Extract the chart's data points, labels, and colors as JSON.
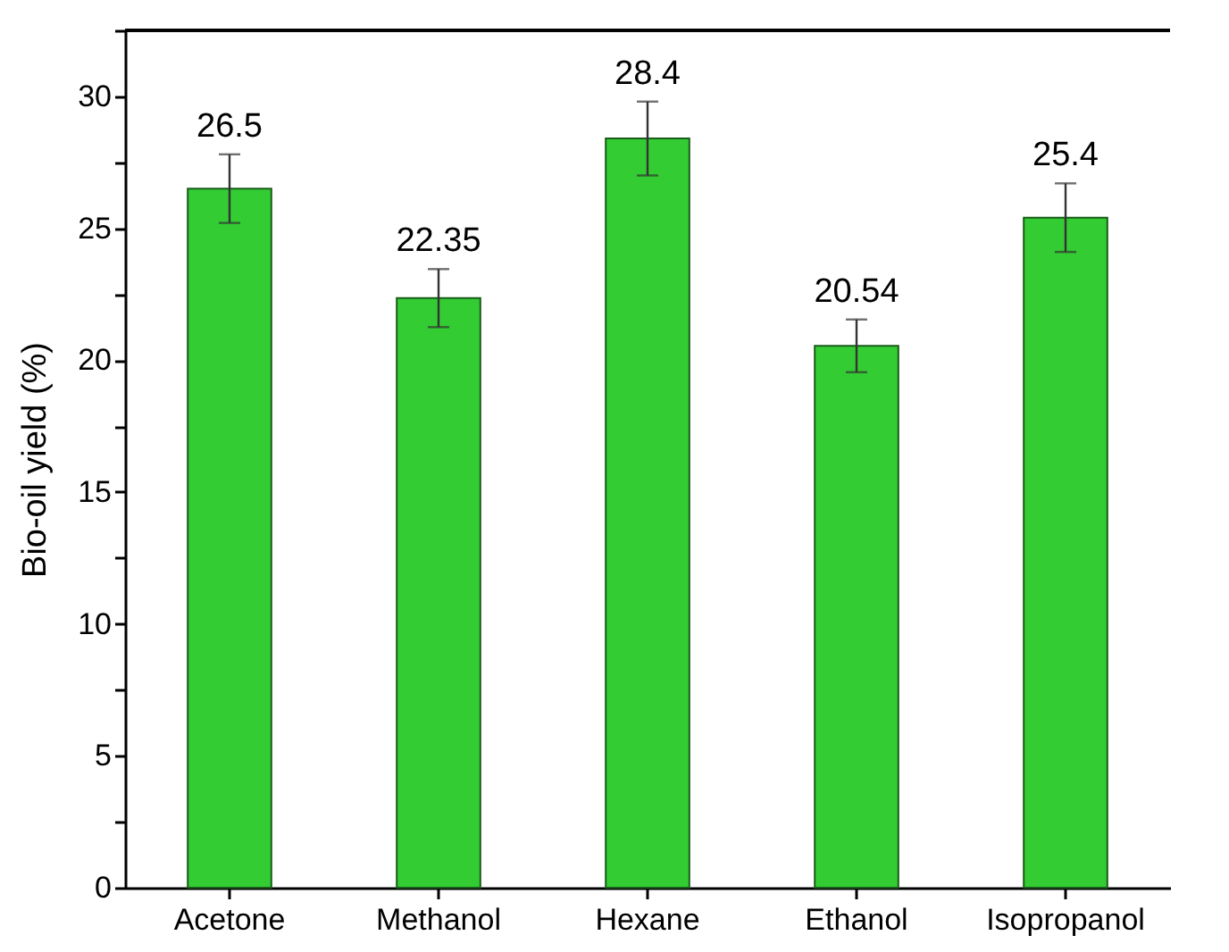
{
  "chart_data": {
    "type": "bar",
    "ylabel": "Bio-oil yield (%)",
    "categories": [
      "Acetone",
      "Methanol",
      "Hexane",
      "Ethanol",
      "Isopropanol"
    ],
    "values": [
      26.5,
      22.35,
      28.4,
      20.54,
      25.4
    ],
    "errors": [
      1.3,
      1.1,
      1.4,
      1.0,
      1.3
    ],
    "value_labels": [
      "26.5",
      "22.35",
      "28.4",
      "20.54",
      "25.4"
    ],
    "color": "#33cc33",
    "ylim": [
      0,
      32.5
    ],
    "yticks": [
      0,
      {
        "value": 2.5,
        "label": null
      },
      5,
      {
        "value": 7.5,
        "label": null
      },
      10,
      {
        "value": 12.5,
        "label": null
      },
      15,
      {
        "value": 17.5,
        "label": null
      },
      20,
      {
        "value": 22.5,
        "label": null
      },
      25,
      {
        "value": 27.5,
        "label": null
      },
      30,
      {
        "value": 32.5,
        "label": null
      }
    ],
    "grid": false
  }
}
